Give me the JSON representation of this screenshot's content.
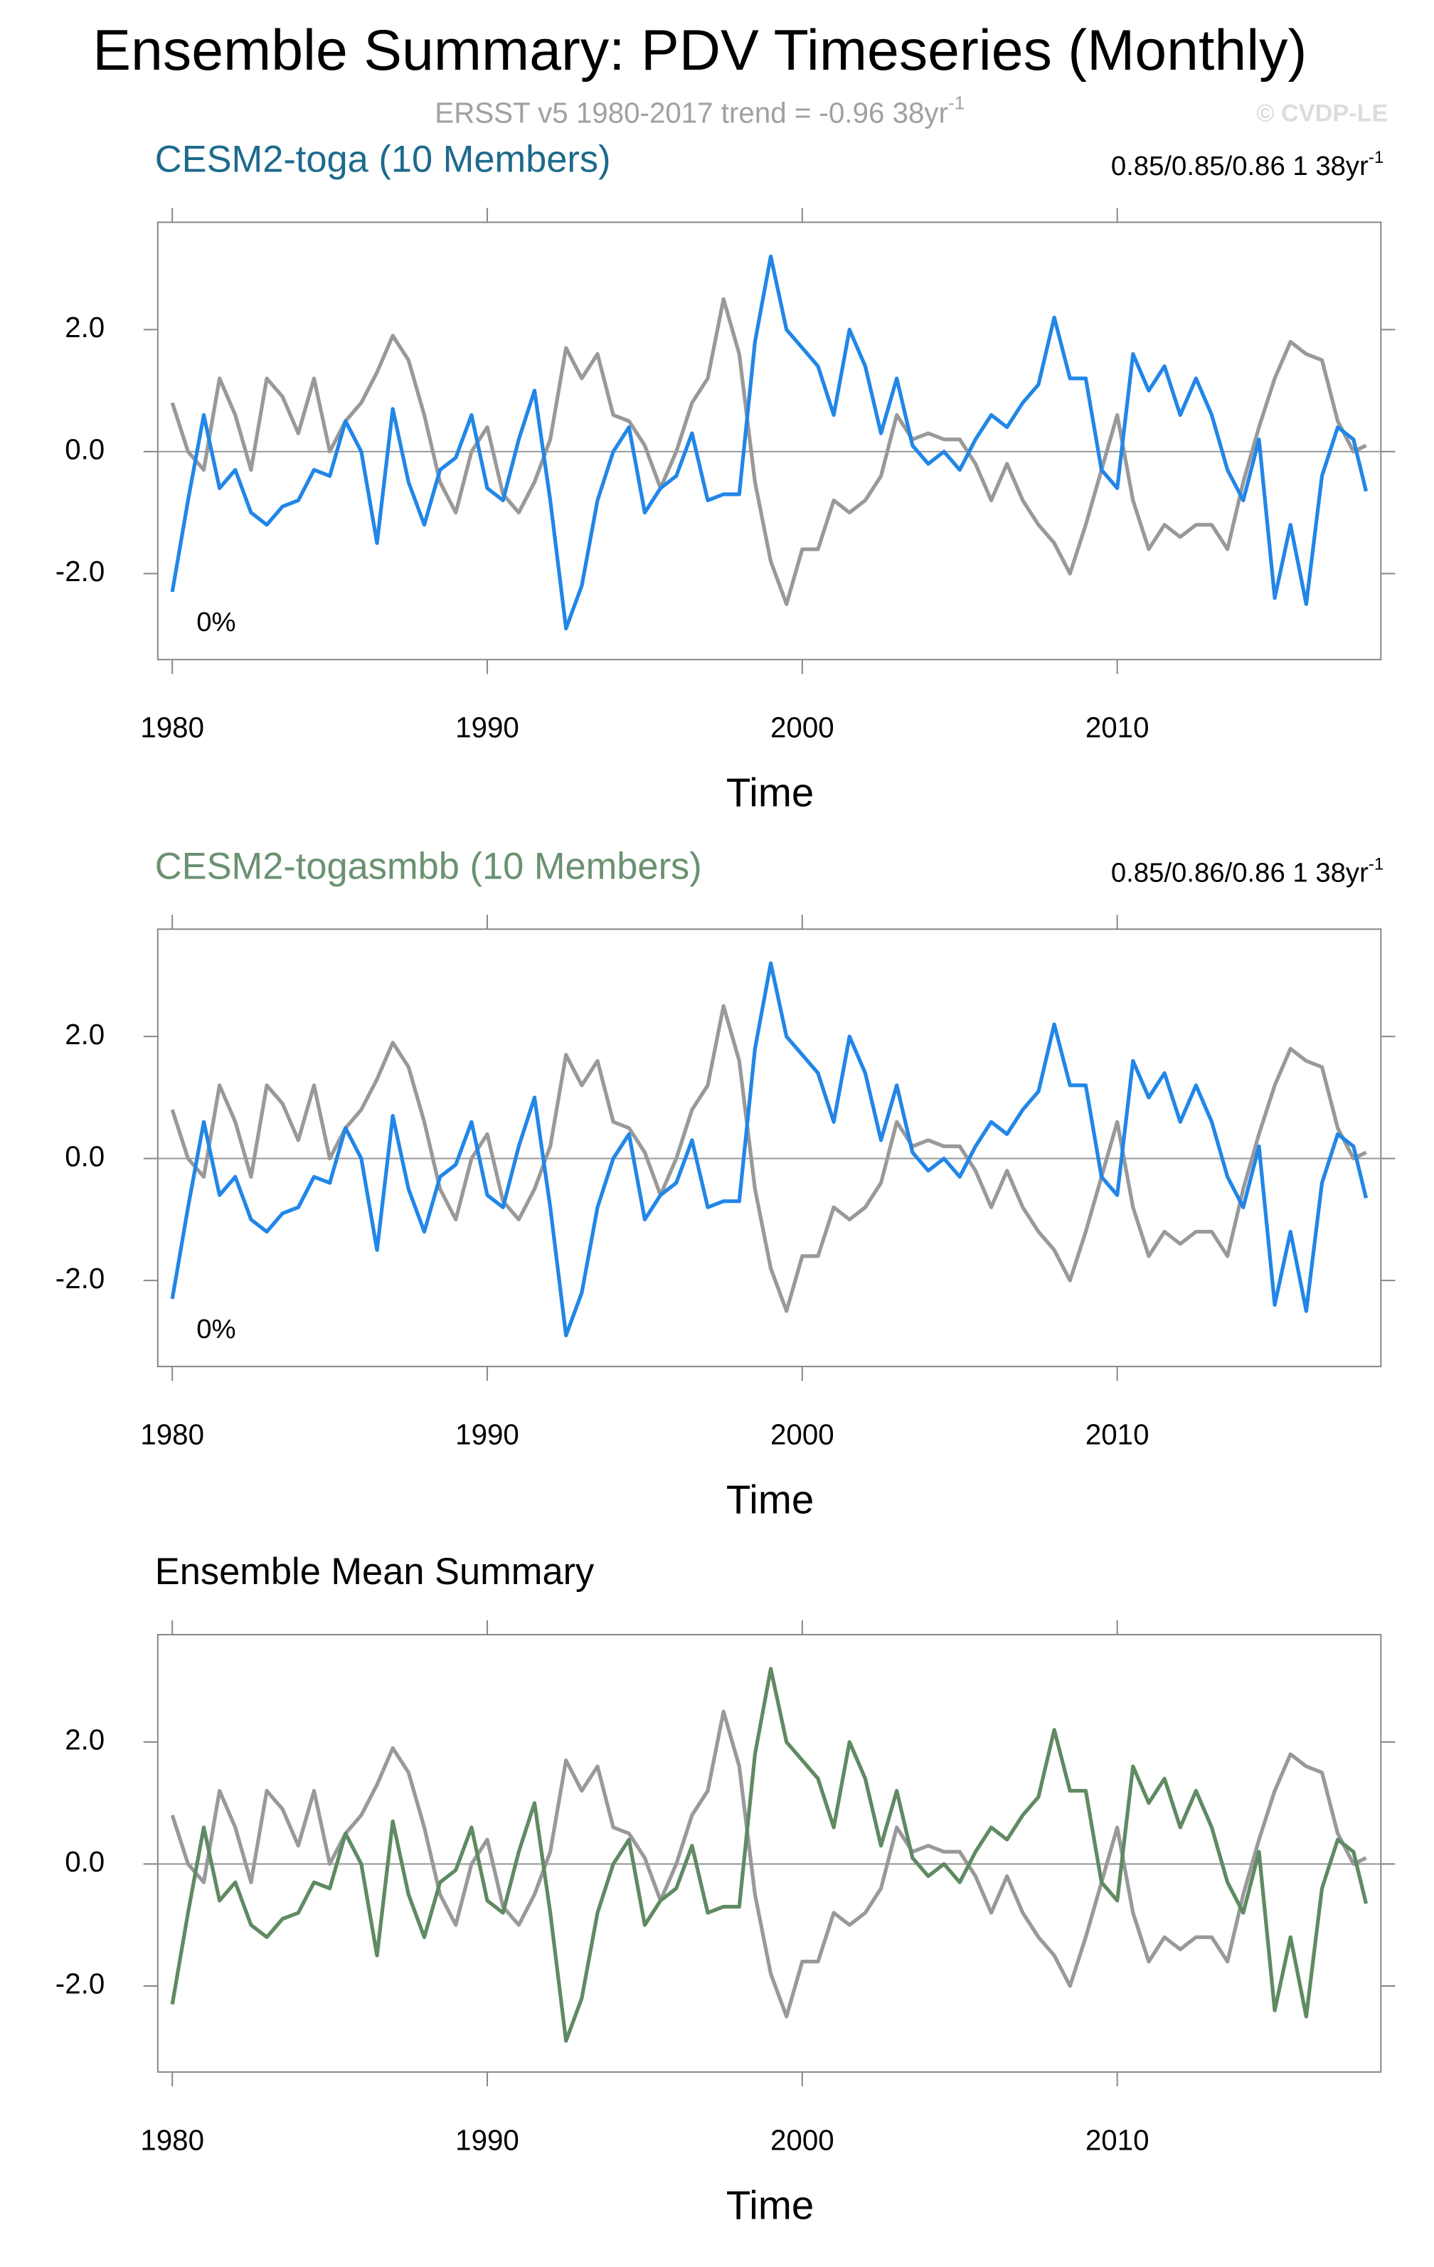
{
  "title": "Ensemble Summary: PDV Timeseries (Monthly)",
  "subtitle": "ERSST v5 1980-2017 trend = -0.96 38yr",
  "subtitle_sup": "-1",
  "watermark": "© CVDP-LE",
  "chart_data": [
    {
      "type": "line",
      "title": "CESM2-toga (10 Members)",
      "title_color": "#1d6a8c",
      "stats": "0.85/0.85/0.86 1 38yr",
      "stats_sup": "-1",
      "note": "0%",
      "xlabel": "Time",
      "x": [
        1980,
        1980.5,
        1981,
        1981.5,
        1982,
        1982.5,
        1983,
        1983.5,
        1984,
        1984.5,
        1985,
        1985.5,
        1986,
        1986.5,
        1987,
        1987.5,
        1988,
        1988.5,
        1989,
        1989.5,
        1990,
        1990.5,
        1991,
        1991.5,
        1992,
        1992.5,
        1993,
        1993.5,
        1994,
        1994.5,
        1995,
        1995.5,
        1996,
        1996.5,
        1997,
        1997.5,
        1998,
        1998.5,
        1999,
        1999.5,
        2000,
        2000.5,
        2001,
        2001.5,
        2002,
        2002.5,
        2003,
        2003.5,
        2004,
        2004.5,
        2005,
        2005.5,
        2006,
        2006.5,
        2007,
        2007.5,
        2008,
        2008.5,
        2009,
        2009.5,
        2010,
        2010.5,
        2011,
        2011.5,
        2012,
        2012.5,
        2013,
        2013.5,
        2014,
        2014.5,
        2015,
        2015.5,
        2016,
        2016.5,
        2017,
        2017.5,
        2017.9
      ],
      "series": [
        {
          "color": "#999999",
          "values": [
            0.8,
            0.0,
            -0.3,
            1.2,
            0.6,
            -0.3,
            1.2,
            0.9,
            0.3,
            1.2,
            0.0,
            0.5,
            0.8,
            1.3,
            1.9,
            1.5,
            0.6,
            -0.5,
            -1.0,
            0.0,
            0.4,
            -0.7,
            -1.0,
            -0.5,
            0.2,
            1.7,
            1.2,
            1.6,
            0.6,
            0.5,
            0.1,
            -0.6,
            0.0,
            0.8,
            1.2,
            2.5,
            1.6,
            -0.5,
            -1.8,
            -2.5,
            -1.6,
            -1.6,
            -0.8,
            -1.0,
            -0.8,
            -0.4,
            0.6,
            0.2,
            0.3,
            0.2,
            0.2,
            -0.2,
            -0.8,
            -0.2,
            -0.8,
            -1.2,
            -1.5,
            -2.0,
            -1.2,
            -0.3,
            0.6,
            -0.8,
            -1.6,
            -1.2,
            -1.4,
            -1.2,
            -1.2,
            -1.6,
            -0.5,
            0.4,
            1.2,
            1.8,
            1.6,
            1.5,
            0.5,
            0.0,
            0.1
          ]
        },
        {
          "color": "#2186e8",
          "values": [
            -2.3,
            -0.8,
            0.6,
            -0.6,
            -0.3,
            -1.0,
            -1.2,
            -0.9,
            -0.8,
            -0.3,
            -0.4,
            0.5,
            0.0,
            -1.5,
            0.7,
            -0.5,
            -1.2,
            -0.3,
            -0.1,
            0.6,
            -0.6,
            -0.8,
            0.2,
            1.0,
            -0.8,
            -2.9,
            -2.2,
            -0.8,
            0.0,
            0.4,
            -1.0,
            -0.6,
            -0.4,
            0.3,
            -0.8,
            -0.7,
            -0.7,
            1.8,
            3.2,
            2.0,
            1.7,
            1.4,
            0.6,
            2.0,
            1.4,
            0.3,
            1.2,
            0.1,
            -0.2,
            0.0,
            -0.3,
            0.2,
            0.6,
            0.4,
            0.8,
            1.1,
            2.2,
            1.2,
            1.2,
            -0.3,
            -0.6,
            1.6,
            1.0,
            1.4,
            0.6,
            1.2,
            0.6,
            -0.3,
            -0.8,
            0.2,
            -2.4,
            -1.2,
            -2.5,
            -0.4,
            0.4,
            0.2,
            -0.65
          ]
        }
      ],
      "xlim": [
        1979.54,
        2018.37
      ],
      "xticks": [
        1980,
        1990,
        2000,
        2010
      ],
      "ylim": [
        -3.41,
        3.76
      ],
      "yticks": [
        {
          "value": -2,
          "label": "-2.0"
        },
        {
          "value": 0,
          "label": "0.0"
        },
        {
          "value": 2,
          "label": "2.0"
        }
      ],
      "zero_line": true
    },
    {
      "type": "line",
      "title": "CESM2-togasmbb (10 Members)",
      "title_color": "#6a9170",
      "stats": "0.85/0.86/0.86 1 38yr",
      "stats_sup": "-1",
      "note": "0%",
      "xlabel": "Time",
      "x": [
        1980,
        1980.5,
        1981,
        1981.5,
        1982,
        1982.5,
        1983,
        1983.5,
        1984,
        1984.5,
        1985,
        1985.5,
        1986,
        1986.5,
        1987,
        1987.5,
        1988,
        1988.5,
        1989,
        1989.5,
        1990,
        1990.5,
        1991,
        1991.5,
        1992,
        1992.5,
        1993,
        1993.5,
        1994,
        1994.5,
        1995,
        1995.5,
        1996,
        1996.5,
        1997,
        1997.5,
        1998,
        1998.5,
        1999,
        1999.5,
        2000,
        2000.5,
        2001,
        2001.5,
        2002,
        2002.5,
        2003,
        2003.5,
        2004,
        2004.5,
        2005,
        2005.5,
        2006,
        2006.5,
        2007,
        2007.5,
        2008,
        2008.5,
        2009,
        2009.5,
        2010,
        2010.5,
        2011,
        2011.5,
        2012,
        2012.5,
        2013,
        2013.5,
        2014,
        2014.5,
        2015,
        2015.5,
        2016,
        2016.5,
        2017,
        2017.5,
        2017.9
      ],
      "series": [
        {
          "color": "#999999",
          "values": [
            0.8,
            0.0,
            -0.3,
            1.2,
            0.6,
            -0.3,
            1.2,
            0.9,
            0.3,
            1.2,
            0.0,
            0.5,
            0.8,
            1.3,
            1.9,
            1.5,
            0.6,
            -0.5,
            -1.0,
            0.0,
            0.4,
            -0.7,
            -1.0,
            -0.5,
            0.2,
            1.7,
            1.2,
            1.6,
            0.6,
            0.5,
            0.1,
            -0.6,
            0.0,
            0.8,
            1.2,
            2.5,
            1.6,
            -0.5,
            -1.8,
            -2.5,
            -1.6,
            -1.6,
            -0.8,
            -1.0,
            -0.8,
            -0.4,
            0.6,
            0.2,
            0.3,
            0.2,
            0.2,
            -0.2,
            -0.8,
            -0.2,
            -0.8,
            -1.2,
            -1.5,
            -2.0,
            -1.2,
            -0.3,
            0.6,
            -0.8,
            -1.6,
            -1.2,
            -1.4,
            -1.2,
            -1.2,
            -1.6,
            -0.5,
            0.4,
            1.2,
            1.8,
            1.6,
            1.5,
            0.5,
            0.0,
            0.1
          ]
        },
        {
          "color": "#2186e8",
          "values": [
            -2.3,
            -0.8,
            0.6,
            -0.6,
            -0.3,
            -1.0,
            -1.2,
            -0.9,
            -0.8,
            -0.3,
            -0.4,
            0.5,
            0.0,
            -1.5,
            0.7,
            -0.5,
            -1.2,
            -0.3,
            -0.1,
            0.6,
            -0.6,
            -0.8,
            0.2,
            1.0,
            -0.8,
            -2.9,
            -2.2,
            -0.8,
            0.0,
            0.4,
            -1.0,
            -0.6,
            -0.4,
            0.3,
            -0.8,
            -0.7,
            -0.7,
            1.8,
            3.2,
            2.0,
            1.7,
            1.4,
            0.6,
            2.0,
            1.4,
            0.3,
            1.2,
            0.1,
            -0.2,
            0.0,
            -0.3,
            0.2,
            0.6,
            0.4,
            0.8,
            1.1,
            2.2,
            1.2,
            1.2,
            -0.3,
            -0.6,
            1.6,
            1.0,
            1.4,
            0.6,
            1.2,
            0.6,
            -0.3,
            -0.8,
            0.2,
            -2.4,
            -1.2,
            -2.5,
            -0.4,
            0.4,
            0.2,
            -0.65
          ]
        }
      ],
      "xlim": [
        1979.54,
        2018.37
      ],
      "xticks": [
        1980,
        1990,
        2000,
        2010
      ],
      "ylim": [
        -3.41,
        3.76
      ],
      "yticks": [
        {
          "value": -2,
          "label": "-2.0"
        },
        {
          "value": 0,
          "label": "0.0"
        },
        {
          "value": 2,
          "label": "2.0"
        }
      ],
      "zero_line": true
    },
    {
      "type": "line",
      "title": "Ensemble Mean Summary",
      "title_color": "#000000",
      "xlabel": "Time",
      "x": [
        1980,
        1980.5,
        1981,
        1981.5,
        1982,
        1982.5,
        1983,
        1983.5,
        1984,
        1984.5,
        1985,
        1985.5,
        1986,
        1986.5,
        1987,
        1987.5,
        1988,
        1988.5,
        1989,
        1989.5,
        1990,
        1990.5,
        1991,
        1991.5,
        1992,
        1992.5,
        1993,
        1993.5,
        1994,
        1994.5,
        1995,
        1995.5,
        1996,
        1996.5,
        1997,
        1997.5,
        1998,
        1998.5,
        1999,
        1999.5,
        2000,
        2000.5,
        2001,
        2001.5,
        2002,
        2002.5,
        2003,
        2003.5,
        2004,
        2004.5,
        2005,
        2005.5,
        2006,
        2006.5,
        2007,
        2007.5,
        2008,
        2008.5,
        2009,
        2009.5,
        2010,
        2010.5,
        2011,
        2011.5,
        2012,
        2012.5,
        2013,
        2013.5,
        2014,
        2014.5,
        2015,
        2015.5,
        2016,
        2016.5,
        2017,
        2017.5,
        2017.9
      ],
      "series": [
        {
          "color": "#999999",
          "values": [
            0.8,
            0.0,
            -0.3,
            1.2,
            0.6,
            -0.3,
            1.2,
            0.9,
            0.3,
            1.2,
            0.0,
            0.5,
            0.8,
            1.3,
            1.9,
            1.5,
            0.6,
            -0.5,
            -1.0,
            0.0,
            0.4,
            -0.7,
            -1.0,
            -0.5,
            0.2,
            1.7,
            1.2,
            1.6,
            0.6,
            0.5,
            0.1,
            -0.6,
            0.0,
            0.8,
            1.2,
            2.5,
            1.6,
            -0.5,
            -1.8,
            -2.5,
            -1.6,
            -1.6,
            -0.8,
            -1.0,
            -0.8,
            -0.4,
            0.6,
            0.2,
            0.3,
            0.2,
            0.2,
            -0.2,
            -0.8,
            -0.2,
            -0.8,
            -1.2,
            -1.5,
            -2.0,
            -1.2,
            -0.3,
            0.6,
            -0.8,
            -1.6,
            -1.2,
            -1.4,
            -1.2,
            -1.2,
            -1.6,
            -0.5,
            0.4,
            1.2,
            1.8,
            1.6,
            1.5,
            0.5,
            0.0,
            0.1
          ]
        },
        {
          "color": "#5f8a62",
          "values": [
            -2.3,
            -0.8,
            0.6,
            -0.6,
            -0.3,
            -1.0,
            -1.2,
            -0.9,
            -0.8,
            -0.3,
            -0.4,
            0.5,
            0.0,
            -1.5,
            0.7,
            -0.5,
            -1.2,
            -0.3,
            -0.1,
            0.6,
            -0.6,
            -0.8,
            0.2,
            1.0,
            -0.8,
            -2.9,
            -2.2,
            -0.8,
            0.0,
            0.4,
            -1.0,
            -0.6,
            -0.4,
            0.3,
            -0.8,
            -0.7,
            -0.7,
            1.8,
            3.2,
            2.0,
            1.7,
            1.4,
            0.6,
            2.0,
            1.4,
            0.3,
            1.2,
            0.1,
            -0.2,
            0.0,
            -0.3,
            0.2,
            0.6,
            0.4,
            0.8,
            1.1,
            2.2,
            1.2,
            1.2,
            -0.3,
            -0.6,
            1.6,
            1.0,
            1.4,
            0.6,
            1.2,
            0.6,
            -0.3,
            -0.8,
            0.2,
            -2.4,
            -1.2,
            -2.5,
            -0.4,
            0.4,
            0.2,
            -0.65
          ]
        }
      ],
      "xlim": [
        1979.54,
        2018.37
      ],
      "xticks": [
        1980,
        1990,
        2000,
        2010
      ],
      "ylim": [
        -3.41,
        3.76
      ],
      "yticks": [
        {
          "value": -2,
          "label": "-2.0"
        },
        {
          "value": 0,
          "label": "0.0"
        },
        {
          "value": 2,
          "label": "2.0"
        }
      ],
      "zero_line": true
    }
  ]
}
